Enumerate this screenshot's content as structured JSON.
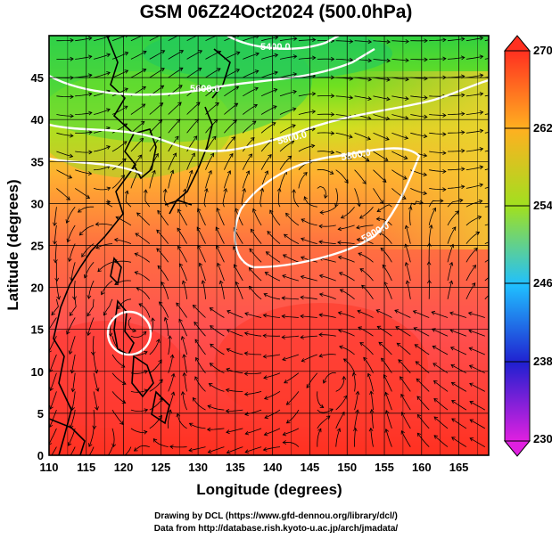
{
  "title": "GSM 06Z24Oct2024 (500.0hPa)",
  "map": {
    "xlabel": "Longitude (degrees)",
    "ylabel": "Latitude  (degrees)",
    "x_ticks": [
      "110",
      "115",
      "120",
      "125",
      "130",
      "135",
      "140",
      "145",
      "150",
      "155",
      "160",
      "165"
    ],
    "x_tick_values": [
      110,
      115,
      120,
      125,
      130,
      135,
      140,
      145,
      150,
      155,
      160,
      165
    ],
    "y_ticks": [
      "0",
      "5",
      "10",
      "15",
      "20",
      "25",
      "30",
      "35",
      "40",
      "45"
    ],
    "y_tick_values": [
      0,
      5,
      10,
      15,
      20,
      25,
      30,
      35,
      40,
      45
    ],
    "lon_range": [
      110,
      169
    ],
    "lat_range": [
      0,
      50
    ],
    "grid": true,
    "contour_labels": [
      "5400.0",
      "5600.0",
      "5800.0",
      "5800.0",
      "5900.0"
    ],
    "typhoon_center": {
      "lon": 121.5,
      "lat": 16.5
    }
  },
  "colorbar": {
    "labels": [
      "270",
      "262",
      "254",
      "246",
      "238",
      "230"
    ],
    "range": [
      230,
      270
    ],
    "colors": [
      "#e020e0",
      "#2020d0",
      "#20c0ff",
      "#20e060",
      "#a0e020",
      "#ffb020",
      "#ff3020"
    ]
  },
  "credits": {
    "line1": "Drawing by DCL (https://www.gfd-dennou.org/library/dcl/)",
    "line2": "Data from http://database.rish.kyoto-u.ac.jp/arch/jmadata/"
  }
}
